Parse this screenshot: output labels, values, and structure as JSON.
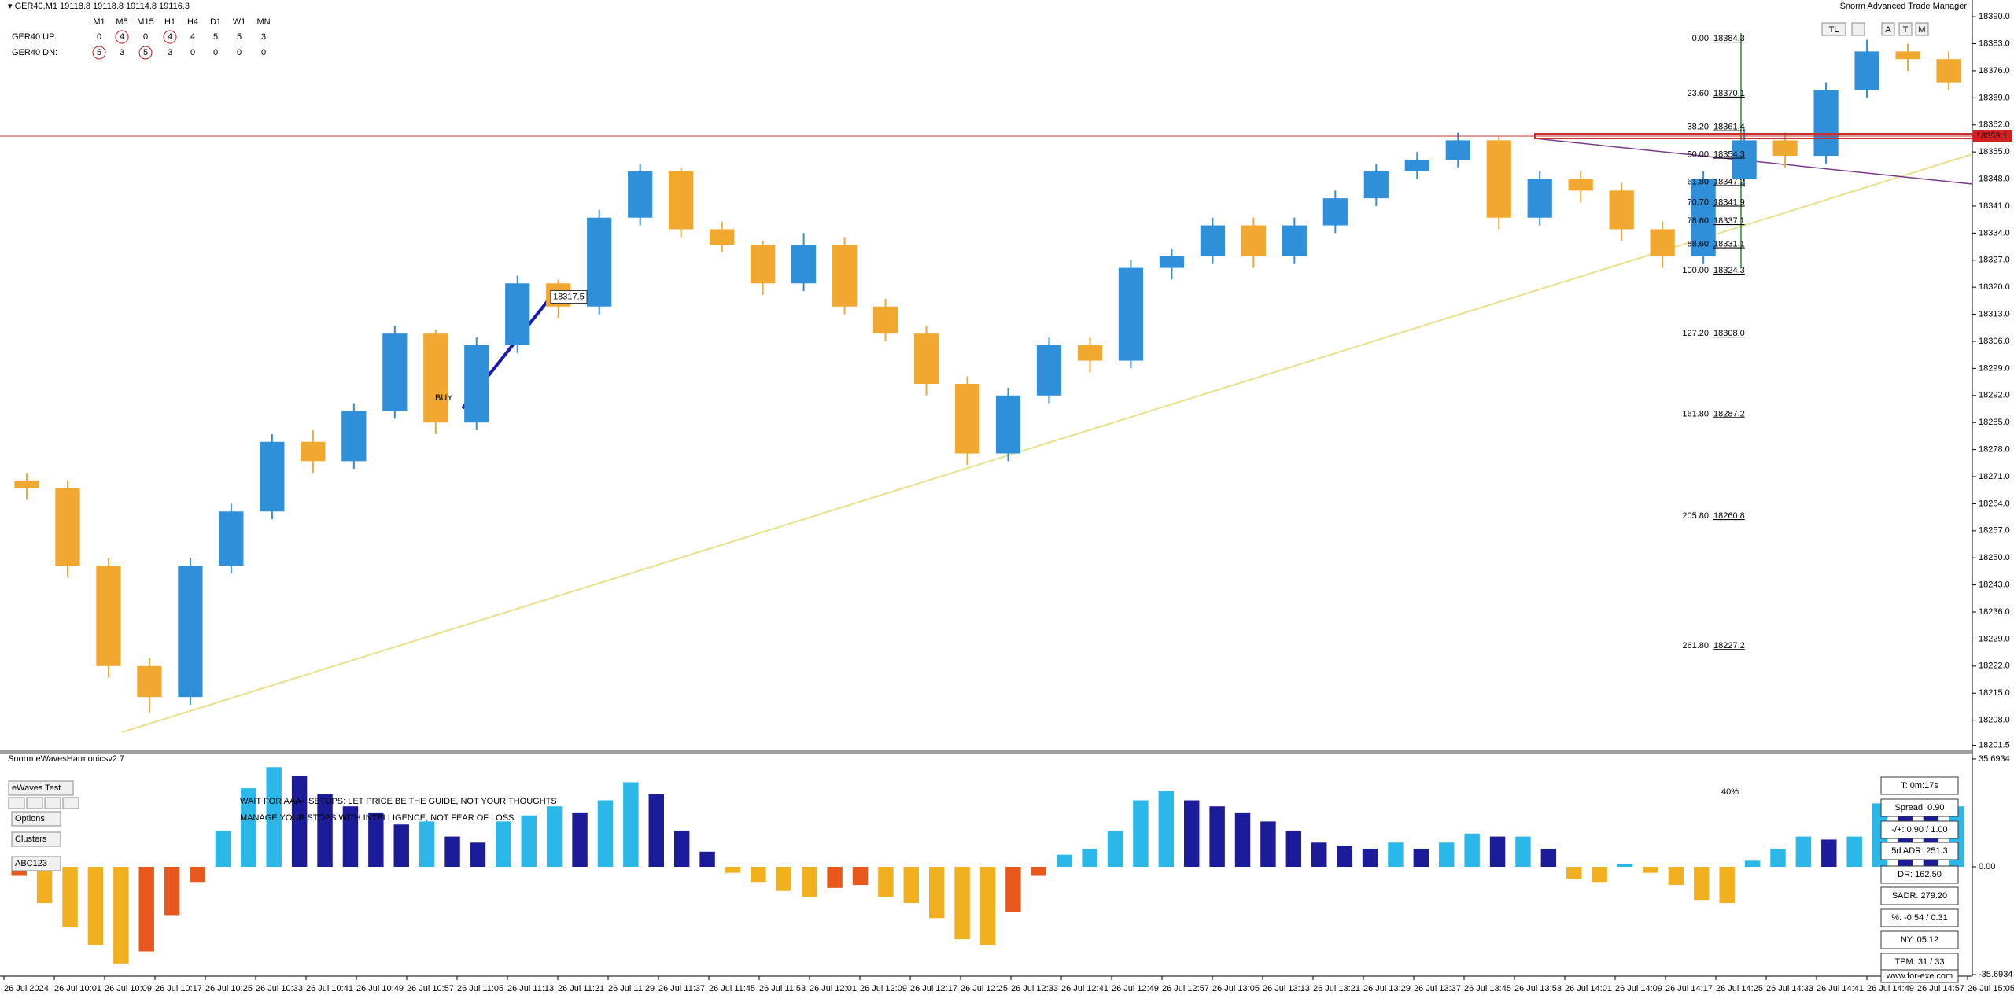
{
  "header": {
    "symbol_line": "▾ GER40,M1  19118.8 19118.8 19114.8 19116.3",
    "manager": "Snorm Advanced Trade Manager",
    "buttons": [
      "TL",
      "A",
      "T",
      "M"
    ]
  },
  "strength_table": {
    "columns": [
      "M1",
      "M5",
      "M15",
      "H1",
      "H4",
      "D1",
      "W1",
      "MN"
    ],
    "rows": [
      {
        "label": "GER40 UP:",
        "values": [
          0,
          4,
          0,
          4,
          4,
          5,
          5,
          3
        ],
        "circled": [
          false,
          true,
          false,
          true,
          false,
          false,
          false,
          false
        ]
      },
      {
        "label": "GER40 DN:",
        "values": [
          5,
          3,
          5,
          3,
          0,
          0,
          0,
          0
        ],
        "circled": [
          true,
          false,
          true,
          false,
          false,
          false,
          false,
          false
        ]
      }
    ]
  },
  "price_chart": {
    "type": "candlestick",
    "up_color": "#2f8fd8",
    "down_color": "#f0a830",
    "ylim": [
      18200.4,
      18394.3
    ],
    "yticks": [
      {
        "value": 18390,
        "label": "18390.0"
      },
      {
        "value": 18383,
        "label": "18383.0"
      },
      {
        "value": 18376,
        "label": "18376.0"
      },
      {
        "value": 18369,
        "label": "18369.0"
      },
      {
        "value": 18362,
        "label": "18362.0"
      },
      {
        "value": 18355,
        "label": "18355.0"
      },
      {
        "value": 18348,
        "label": "18348.0"
      },
      {
        "value": 18341,
        "label": "18341.0"
      },
      {
        "value": 18334,
        "label": "18334.0"
      },
      {
        "value": 18327,
        "label": "18327.0"
      },
      {
        "value": 18320,
        "label": "18320.0"
      },
      {
        "value": 18313,
        "label": "18313.0"
      },
      {
        "value": 18306,
        "label": "18306.0"
      },
      {
        "value": 18299,
        "label": "18299.0"
      },
      {
        "value": 18292,
        "label": "18292.0"
      },
      {
        "value": 18285,
        "label": "18285.0"
      },
      {
        "value": 18278,
        "label": "18278.0"
      },
      {
        "value": 18271,
        "label": "18271.0"
      },
      {
        "value": 18264,
        "label": "18264.0"
      },
      {
        "value": 18257,
        "label": "18257.0"
      },
      {
        "value": 18250,
        "label": "18250.0"
      },
      {
        "value": 18243,
        "label": "18243.0"
      },
      {
        "value": 18236,
        "label": "18236.0"
      },
      {
        "value": 18229,
        "label": "18229.0"
      },
      {
        "value": 18222,
        "label": "18222.0"
      },
      {
        "value": 18215,
        "label": "18215.0"
      },
      {
        "value": 18208,
        "label": "18208.0"
      },
      {
        "value": 18201.5,
        "label": "18201.5"
      }
    ],
    "candles": [
      [
        18270,
        18272,
        18265,
        18268
      ],
      [
        18268,
        18270,
        18245,
        18248
      ],
      [
        18248,
        18250,
        18219,
        18222
      ],
      [
        18222,
        18224,
        18210,
        18214
      ],
      [
        18214,
        18250,
        18212,
        18248
      ],
      [
        18248,
        18264,
        18246,
        18262
      ],
      [
        18262,
        18282,
        18260,
        18280
      ],
      [
        18280,
        18283,
        18272,
        18275
      ],
      [
        18275,
        18290,
        18273,
        18288
      ],
      [
        18288,
        18310,
        18286,
        18308
      ],
      [
        18308,
        18309,
        18282,
        18285
      ],
      [
        18285,
        18307,
        18283,
        18305
      ],
      [
        18305,
        18323,
        18303,
        18321
      ],
      [
        18321,
        18322,
        18312,
        18315
      ],
      [
        18315,
        18340,
        18313,
        18338
      ],
      [
        18338,
        18352,
        18336,
        18350
      ],
      [
        18350,
        18351,
        18333,
        18335
      ],
      [
        18335,
        18337,
        18329,
        18331
      ],
      [
        18331,
        18332,
        18318,
        18321
      ],
      [
        18321,
        18334,
        18319,
        18331
      ],
      [
        18331,
        18333,
        18313,
        18315
      ],
      [
        18315,
        18317,
        18306,
        18308
      ],
      [
        18308,
        18310,
        18292,
        18295
      ],
      [
        18295,
        18297,
        18274,
        18277
      ],
      [
        18277,
        18294,
        18275,
        18292
      ],
      [
        18292,
        18307,
        18290,
        18305
      ],
      [
        18305,
        18307,
        18298,
        18301
      ],
      [
        18301,
        18327,
        18299,
        18325
      ],
      [
        18325,
        18330,
        18322,
        18328
      ],
      [
        18328,
        18338,
        18326,
        18336
      ],
      [
        18336,
        18338,
        18325,
        18328
      ],
      [
        18328,
        18338,
        18326,
        18336
      ],
      [
        18336,
        18345,
        18334,
        18343
      ],
      [
        18343,
        18352,
        18341,
        18350
      ],
      [
        18350,
        18355,
        18348,
        18353
      ],
      [
        18353,
        18360,
        18351,
        18358
      ],
      [
        18358,
        18359,
        18335,
        18338
      ],
      [
        18338,
        18350,
        18336,
        18348
      ],
      [
        18348,
        18350,
        18342,
        18345
      ],
      [
        18345,
        18347,
        18332,
        18335
      ],
      [
        18335,
        18337,
        18325,
        18328
      ],
      [
        18328,
        18350,
        18326,
        18348
      ],
      [
        18348,
        18361,
        18346,
        18358
      ],
      [
        18358,
        18360,
        18351,
        18354
      ],
      [
        18354,
        18373,
        18352,
        18371
      ],
      [
        18371,
        18384,
        18369,
        18381
      ],
      [
        18381,
        18383,
        18376,
        18379
      ],
      [
        18379,
        18381,
        18371,
        18373
      ]
    ],
    "current_price": 18359.1,
    "buy_label": "BUY",
    "buy_price": 18317.5,
    "fib_levels": [
      {
        "ratio": "0.00",
        "price": 18384.3
      },
      {
        "ratio": "23.60",
        "price": 18370.1
      },
      {
        "ratio": "38.20",
        "price": 18361.4
      },
      {
        "ratio": "50.00",
        "price": 18354.3
      },
      {
        "ratio": "61.80",
        "price": 18347.2
      },
      {
        "ratio": "70.70",
        "price": 18341.9
      },
      {
        "ratio": "78.60",
        "price": 18337.1
      },
      {
        "ratio": "88.60",
        "price": 18331.1
      },
      {
        "ratio": "100.00",
        "price": 18324.3
      },
      {
        "ratio": "127.20",
        "price": {
          "value": 18308,
          "label": "18308.0"
        }
      },
      {
        "ratio": "161.80",
        "price": 18287.2
      },
      {
        "ratio": "205.80",
        "price": 18260.8
      },
      {
        "ratio": "261.80",
        "price": 18227.2
      }
    ],
    "x_labels": [
      "26 Jul 2024",
      "26 Jul 10:01",
      "26 Jul 10:09",
      "26 Jul 10:17",
      "26 Jul 10:25",
      "26 Jul 10:33",
      "26 Jul 10:41",
      "26 Jul 10:49",
      "26 Jul 10:57",
      "26 Jul 11:05",
      "26 Jul 11:13",
      "26 Jul 11:21",
      "26 Jul 11:29",
      "26 Jul 11:37",
      "26 Jul 11:45",
      "26 Jul 11:53",
      "26 Jul 12:01",
      "26 Jul 12:09",
      "26 Jul 12:17",
      "26 Jul 12:25",
      "26 Jul 12:33",
      "26 Jul 12:41",
      "26 Jul 12:49",
      "26 Jul 12:57",
      "26 Jul 13:05",
      "26 Jul 13:13",
      "26 Jul 13:21",
      "26 Jul 13:29",
      "26 Jul 13:37",
      "26 Jul 13:45",
      "26 Jul 13:53",
      "26 Jul 14:01",
      "26 Jul 14:09",
      "26 Jul 14:17",
      "26 Jul 14:25",
      "26 Jul 14:33",
      "26 Jul 14:41",
      "26 Jul 14:49",
      "26 Jul 14:57",
      "26 Jul 15:05"
    ]
  },
  "indicator": {
    "type": "histogram",
    "title": "Snorm eWavesHarmonicsv2.7",
    "ylim": [
      -36.2,
      37.5
    ],
    "yticks": [
      35.6934,
      {
        "value": 0,
        "label": "0.00"
      },
      -35.6934
    ],
    "colors": {
      "pos_up": "#2bb8e8",
      "pos_down": "#1c1c9a",
      "neg_down": "#f0b020",
      "neg_up": "#e8581c"
    },
    "values": [
      -3,
      -12,
      -20,
      -26,
      -32,
      -28,
      -16,
      -5,
      12,
      26,
      33,
      30,
      24,
      20,
      18,
      14,
      15,
      10,
      8,
      15,
      17,
      20,
      18,
      22,
      28,
      24,
      12,
      5,
      -2,
      -5,
      -8,
      -10,
      -7,
      -6,
      -10,
      -12,
      -17,
      -24,
      -26,
      -15,
      -3,
      4,
      6,
      12,
      22,
      25,
      22,
      20,
      18,
      15,
      12,
      8,
      7,
      6,
      8,
      6,
      8,
      11,
      10,
      10,
      6,
      -4,
      -5,
      1,
      -2,
      -6,
      -11,
      -12,
      2,
      6,
      10,
      9,
      10,
      21,
      18,
      17,
      20
    ],
    "message": [
      "WAIT FOR AAA+ SETUPS: LET PRICE BE THE GUIDE, NOT YOUR THOUGHTS",
      "MANAGE YOUR STOPS WITH INTELLIGENCE, NOT FEAR OF LOSS"
    ],
    "percent_label": "40%",
    "buttons": [
      "eWaves Test",
      "Options",
      "Clusters",
      "ABC123"
    ],
    "info_panel": [
      "T: 0m:17s",
      "Spread: 0.90",
      "-/+: 0.90 / 1.00",
      "5d ADR: 251.3",
      "DR: 162.50",
      "SADR: 279.20",
      "%: -0.54 / 0.31",
      "NY: 05:12",
      "TPM: 31 / 33",
      "www.for-exe.com"
    ]
  }
}
